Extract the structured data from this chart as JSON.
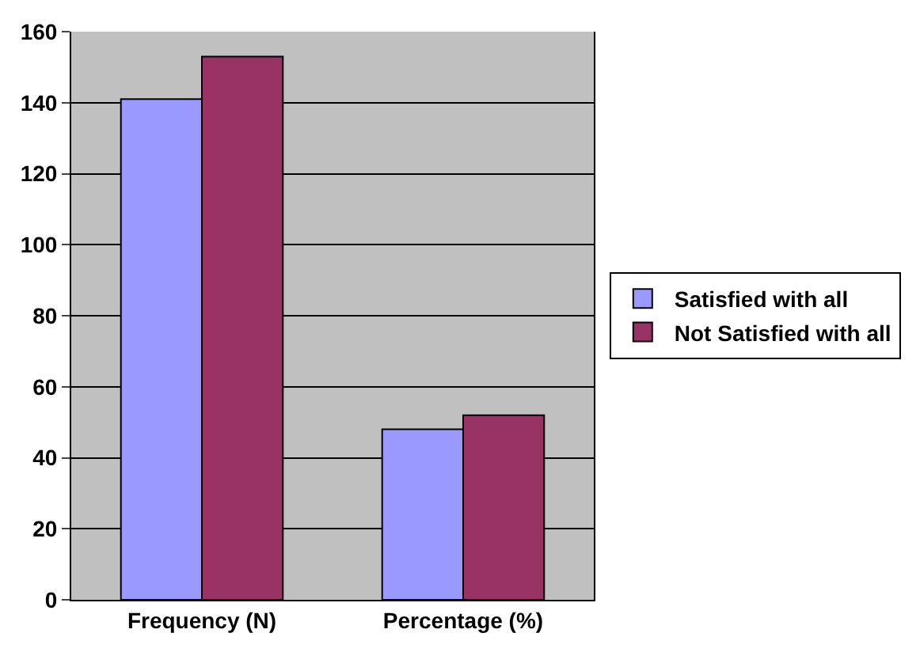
{
  "chart_data": {
    "type": "bar",
    "categories": [
      "Frequency (N)",
      "Percentage (%)"
    ],
    "series": [
      {
        "name": "Satisfied with all",
        "color": "#9999ff",
        "values": [
          141,
          48
        ]
      },
      {
        "name": "Not Satisfied with all",
        "color": "#993366",
        "values": [
          153,
          52
        ]
      }
    ],
    "ylim": [
      0,
      160
    ],
    "yticks": [
      0,
      20,
      40,
      60,
      80,
      100,
      120,
      140,
      160
    ],
    "grid": "y",
    "legend": "right"
  }
}
